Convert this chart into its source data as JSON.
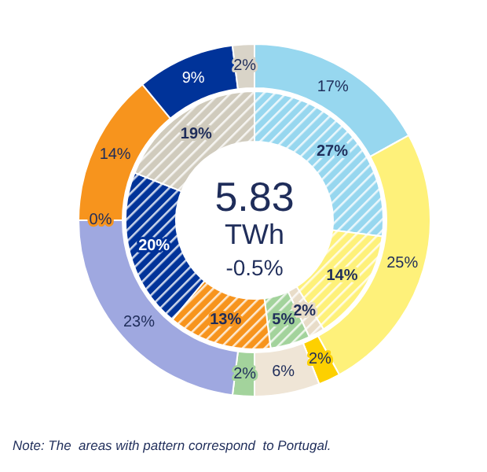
{
  "chart_data": {
    "type": "donut",
    "series": [
      {
        "values": [
          17,
          25,
          2,
          6,
          2,
          23,
          0,
          14,
          9,
          2
        ],
        "colors": [
          "#97d7ef",
          "#fef17a",
          "#fdd000",
          "#efe5d6",
          "#a3d39c",
          "#9fa8e0",
          "#f7941d",
          "#f7941d",
          "#003399",
          "#d9d4c8"
        ],
        "value_labels": [
          "17%",
          "25%",
          "2%",
          "6%",
          "2%",
          "23%",
          "0%",
          "14%",
          "9%",
          "2%"
        ]
      },
      {
        "values": [
          27,
          14,
          2,
          5,
          13,
          20,
          19
        ],
        "colors": [
          "#97d7ef",
          "#fef17a",
          "#e8dcc8",
          "#a3d39c",
          "#f7941d",
          "#003399",
          "#d0cbbd"
        ],
        "value_labels": [
          "27%",
          "14%",
          "2%",
          "5%",
          "13%",
          "20%",
          "19%"
        ]
      }
    ],
    "annotations": [
      "5.83",
      "TWh",
      "-0.5%",
      "Note: The  areas with pattern correspond  to Portugal."
    ]
  }
}
